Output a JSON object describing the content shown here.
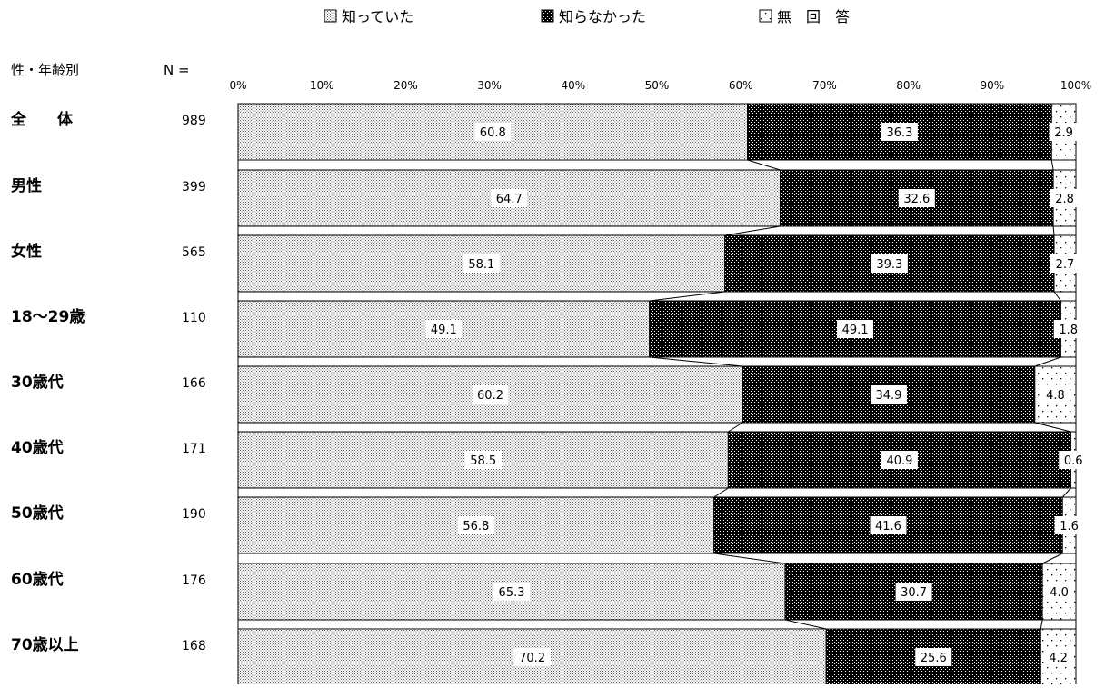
{
  "chart_data": {
    "type": "bar",
    "stacked": true,
    "orientation": "horizontal",
    "percent_scale": true,
    "legend": {
      "placement": "top",
      "entries": [
        "知っていた",
        "知らなかった",
        "無　回　答"
      ]
    },
    "header": {
      "group_label": "性・年齢別",
      "n_label": "N ="
    },
    "xlim": [
      0,
      100
    ],
    "x_ticks": [
      "0%",
      "10%",
      "20%",
      "30%",
      "40%",
      "50%",
      "60%",
      "70%",
      "80%",
      "90%",
      "100%"
    ],
    "categories": [
      "全　　体",
      "男性",
      "女性",
      "18～29歳",
      "30歳代",
      "40歳代",
      "50歳代",
      "60歳代",
      "70歳以上"
    ],
    "n_values": [
      "989",
      "399",
      "565",
      "110",
      "166",
      "171",
      "190",
      "176",
      "168"
    ],
    "series": [
      {
        "name": "知っていた",
        "values": [
          60.8,
          64.7,
          58.1,
          49.1,
          60.2,
          58.5,
          56.8,
          65.3,
          70.2
        ],
        "labels": [
          "60.8",
          "64.7",
          "58.1",
          "49.1",
          "60.2",
          "58.5",
          "56.8",
          "65.3",
          "70.2"
        ]
      },
      {
        "name": "知らなかった",
        "values": [
          36.3,
          32.6,
          39.3,
          49.1,
          34.9,
          40.9,
          41.6,
          30.7,
          25.6
        ],
        "labels": [
          "36.3",
          "32.6",
          "39.3",
          "49.1",
          "34.9",
          "40.9",
          "41.6",
          "30.7",
          "25.6"
        ]
      },
      {
        "name": "無　回　答",
        "values": [
          2.9,
          2.8,
          2.7,
          1.8,
          4.8,
          0.6,
          1.6,
          4.0,
          4.2
        ],
        "labels": [
          "2.9",
          "2.8",
          "2.7",
          "1.8",
          "4.8",
          "0.6",
          "1.6",
          "4.0",
          "4.2"
        ]
      }
    ],
    "colors": {
      "dots_fg": "#000000",
      "bg": "#ffffff"
    }
  }
}
